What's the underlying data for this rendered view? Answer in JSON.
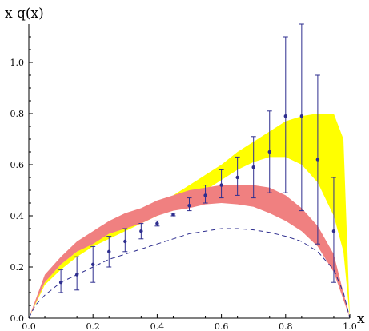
{
  "chart_data": {
    "type": "scatter",
    "title": "",
    "xlabel": "x",
    "ylabel": "x q(x)",
    "xlim": [
      0,
      1
    ],
    "ylim": [
      0,
      1.15
    ],
    "grid": false,
    "x_ticks": [
      "0.0",
      "0.2",
      "0.4",
      "0.6",
      "0.8",
      "1.0"
    ],
    "y_ticks": [
      "0.0",
      "0.2",
      "0.4",
      "0.6",
      "0.8",
      "1.0"
    ],
    "points": {
      "color": "#2e2e8f",
      "data": [
        {
          "x": 0.1,
          "y": 0.14,
          "lo": 0.1,
          "hi": 0.19
        },
        {
          "x": 0.15,
          "y": 0.17,
          "lo": 0.11,
          "hi": 0.24
        },
        {
          "x": 0.2,
          "y": 0.21,
          "lo": 0.14,
          "hi": 0.28
        },
        {
          "x": 0.25,
          "y": 0.26,
          "lo": 0.2,
          "hi": 0.32
        },
        {
          "x": 0.3,
          "y": 0.3,
          "lo": 0.26,
          "hi": 0.35
        },
        {
          "x": 0.35,
          "y": 0.34,
          "lo": 0.31,
          "hi": 0.37
        },
        {
          "x": 0.4,
          "y": 0.37,
          "lo": 0.36,
          "hi": 0.38
        },
        {
          "x": 0.45,
          "y": 0.405,
          "lo": 0.4,
          "hi": 0.41
        },
        {
          "x": 0.5,
          "y": 0.44,
          "lo": 0.42,
          "hi": 0.47
        },
        {
          "x": 0.55,
          "y": 0.48,
          "lo": 0.45,
          "hi": 0.52
        },
        {
          "x": 0.6,
          "y": 0.52,
          "lo": 0.47,
          "hi": 0.58
        },
        {
          "x": 0.65,
          "y": 0.55,
          "lo": 0.48,
          "hi": 0.63
        },
        {
          "x": 0.7,
          "y": 0.59,
          "lo": 0.47,
          "hi": 0.71
        },
        {
          "x": 0.75,
          "y": 0.65,
          "lo": 0.49,
          "hi": 0.81
        },
        {
          "x": 0.8,
          "y": 0.79,
          "lo": 0.49,
          "hi": 1.1
        },
        {
          "x": 0.85,
          "y": 0.79,
          "lo": 0.42,
          "hi": 1.15
        },
        {
          "x": 0.9,
          "y": 0.62,
          "lo": 0.29,
          "hi": 0.95
        },
        {
          "x": 0.95,
          "y": 0.34,
          "lo": 0.14,
          "hi": 0.55
        }
      ]
    },
    "bands": [
      {
        "color": "#ffff00",
        "lower": [
          [
            0,
            0
          ],
          [
            0.05,
            0.13
          ],
          [
            0.1,
            0.19
          ],
          [
            0.15,
            0.24
          ],
          [
            0.2,
            0.28
          ],
          [
            0.25,
            0.31
          ],
          [
            0.3,
            0.34
          ],
          [
            0.35,
            0.37
          ],
          [
            0.4,
            0.4
          ],
          [
            0.45,
            0.43
          ],
          [
            0.5,
            0.46
          ],
          [
            0.55,
            0.5
          ],
          [
            0.6,
            0.54
          ],
          [
            0.65,
            0.58
          ],
          [
            0.7,
            0.61
          ],
          [
            0.75,
            0.63
          ],
          [
            0.8,
            0.63
          ],
          [
            0.85,
            0.6
          ],
          [
            0.9,
            0.53
          ],
          [
            0.95,
            0.4
          ],
          [
            0.98,
            0.26
          ],
          [
            1.0,
            0
          ]
        ],
        "upper": [
          [
            0,
            0
          ],
          [
            0.05,
            0.14
          ],
          [
            0.1,
            0.21
          ],
          [
            0.15,
            0.26
          ],
          [
            0.2,
            0.3
          ],
          [
            0.25,
            0.33
          ],
          [
            0.3,
            0.37
          ],
          [
            0.35,
            0.4
          ],
          [
            0.4,
            0.44
          ],
          [
            0.45,
            0.48
          ],
          [
            0.5,
            0.52
          ],
          [
            0.55,
            0.56
          ],
          [
            0.6,
            0.6
          ],
          [
            0.65,
            0.65
          ],
          [
            0.7,
            0.69
          ],
          [
            0.75,
            0.73
          ],
          [
            0.8,
            0.77
          ],
          [
            0.85,
            0.79
          ],
          [
            0.9,
            0.8
          ],
          [
            0.95,
            0.8
          ],
          [
            0.98,
            0.7
          ],
          [
            1.0,
            0
          ]
        ]
      },
      {
        "color": "#f08080",
        "lower": [
          [
            0,
            0
          ],
          [
            0.05,
            0.14
          ],
          [
            0.1,
            0.21
          ],
          [
            0.15,
            0.26
          ],
          [
            0.2,
            0.29
          ],
          [
            0.25,
            0.33
          ],
          [
            0.3,
            0.35
          ],
          [
            0.35,
            0.37
          ],
          [
            0.4,
            0.4
          ],
          [
            0.45,
            0.42
          ],
          [
            0.5,
            0.43
          ],
          [
            0.55,
            0.445
          ],
          [
            0.6,
            0.45
          ],
          [
            0.65,
            0.445
          ],
          [
            0.7,
            0.435
          ],
          [
            0.75,
            0.41
          ],
          [
            0.8,
            0.38
          ],
          [
            0.85,
            0.34
          ],
          [
            0.9,
            0.28
          ],
          [
            0.95,
            0.18
          ],
          [
            1.0,
            0
          ]
        ],
        "upper": [
          [
            0,
            0
          ],
          [
            0.05,
            0.17
          ],
          [
            0.1,
            0.24
          ],
          [
            0.15,
            0.3
          ],
          [
            0.2,
            0.34
          ],
          [
            0.25,
            0.38
          ],
          [
            0.3,
            0.41
          ],
          [
            0.35,
            0.43
          ],
          [
            0.4,
            0.46
          ],
          [
            0.45,
            0.48
          ],
          [
            0.5,
            0.5
          ],
          [
            0.55,
            0.51
          ],
          [
            0.6,
            0.52
          ],
          [
            0.65,
            0.52
          ],
          [
            0.7,
            0.52
          ],
          [
            0.75,
            0.51
          ],
          [
            0.8,
            0.48
          ],
          [
            0.85,
            0.43
          ],
          [
            0.9,
            0.36
          ],
          [
            0.95,
            0.25
          ],
          [
            1.0,
            0
          ]
        ]
      }
    ],
    "dashed_curve": {
      "color": "#2e2e8f",
      "points": [
        [
          0,
          0
        ],
        [
          0.02,
          0.05
        ],
        [
          0.05,
          0.09
        ],
        [
          0.1,
          0.14
        ],
        [
          0.15,
          0.17
        ],
        [
          0.2,
          0.2
        ],
        [
          0.25,
          0.23
        ],
        [
          0.3,
          0.25
        ],
        [
          0.35,
          0.27
        ],
        [
          0.4,
          0.29
        ],
        [
          0.45,
          0.31
        ],
        [
          0.5,
          0.33
        ],
        [
          0.55,
          0.34
        ],
        [
          0.6,
          0.35
        ],
        [
          0.65,
          0.35
        ],
        [
          0.7,
          0.345
        ],
        [
          0.75,
          0.335
        ],
        [
          0.8,
          0.32
        ],
        [
          0.85,
          0.3
        ],
        [
          0.9,
          0.26
        ],
        [
          0.95,
          0.19
        ],
        [
          0.98,
          0.1
        ],
        [
          1.0,
          0
        ]
      ]
    }
  }
}
